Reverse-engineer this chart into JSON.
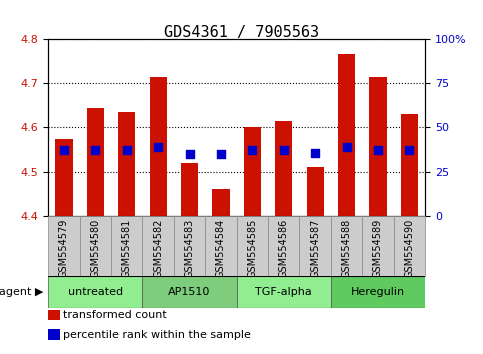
{
  "title": "GDS4361 / 7905563",
  "samples": [
    "GSM554579",
    "GSM554580",
    "GSM554581",
    "GSM554582",
    "GSM554583",
    "GSM554584",
    "GSM554585",
    "GSM554586",
    "GSM554587",
    "GSM554588",
    "GSM554589",
    "GSM554590"
  ],
  "bar_values": [
    4.575,
    4.645,
    4.635,
    4.715,
    4.52,
    4.46,
    4.6,
    4.615,
    4.51,
    4.765,
    4.715,
    4.63
  ],
  "dot_values": [
    4.55,
    4.55,
    4.55,
    4.555,
    4.54,
    4.54,
    4.55,
    4.55,
    4.542,
    4.555,
    4.55,
    4.55
  ],
  "bar_bottom": 4.4,
  "ylim_left": [
    4.4,
    4.8
  ],
  "ylim_right": [
    0,
    100
  ],
  "yticks_left": [
    4.4,
    4.5,
    4.6,
    4.7,
    4.8
  ],
  "yticks_right": [
    0,
    25,
    50,
    75,
    100
  ],
  "ytick_labels_right": [
    "0",
    "25",
    "50",
    "75",
    "100%"
  ],
  "bar_color": "#cc1100",
  "dot_color": "#0000cc",
  "background_plot": "#ffffff",
  "background_xticklabels": "#d3d3d3",
  "grid_color": "#000000",
  "agents": [
    {
      "label": "untreated",
      "start": 0,
      "end": 3,
      "color": "#90ee90"
    },
    {
      "label": "AP1510",
      "start": 3,
      "end": 6,
      "color": "#7dcd7d"
    },
    {
      "label": "TGF-alpha",
      "start": 6,
      "end": 9,
      "color": "#90ee90"
    },
    {
      "label": "Heregulin",
      "start": 9,
      "end": 12,
      "color": "#5fca5f"
    }
  ],
  "legend_items": [
    {
      "label": "transformed count",
      "color": "#cc1100",
      "marker": "s"
    },
    {
      "label": "percentile rank within the sample",
      "color": "#0000cc",
      "marker": "s"
    }
  ],
  "agent_label": "agent",
  "bar_width": 0.55,
  "dot_size": 40,
  "title_fontsize": 11,
  "tick_fontsize": 8,
  "label_fontsize": 9
}
